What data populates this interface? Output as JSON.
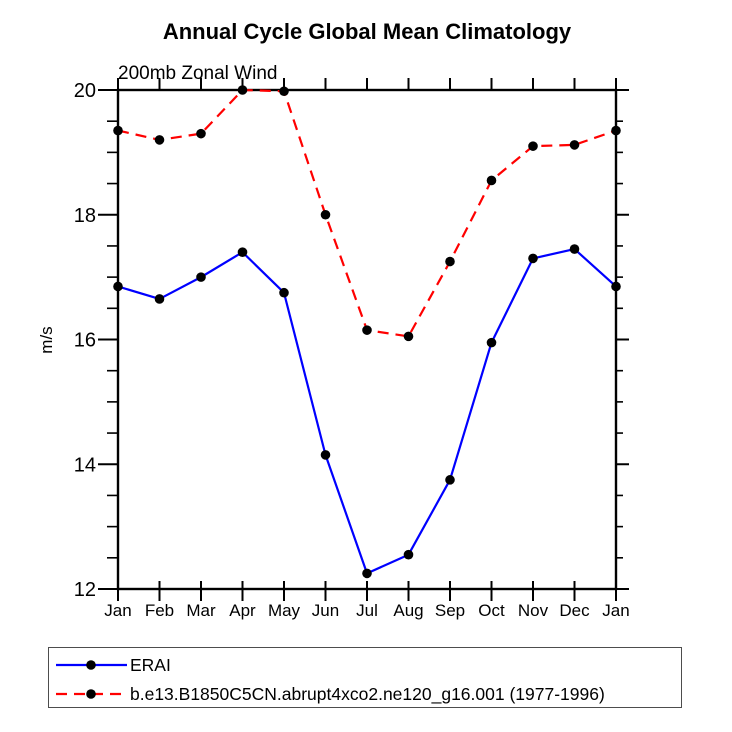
{
  "page": {
    "background": "#ffffff"
  },
  "chart_data": {
    "type": "line",
    "title": "Annual Cycle Global Mean Climatology",
    "subtitle": "200mb Zonal Wind",
    "ylabel": "m/s",
    "xlabel": "",
    "categories": [
      "Jan",
      "Feb",
      "Mar",
      "Apr",
      "May",
      "Jun",
      "Jul",
      "Aug",
      "Sep",
      "Oct",
      "Nov",
      "Dec",
      "Jan"
    ],
    "series": [
      {
        "name": "ERAI",
        "color": "#0000ff",
        "line_style": "solid",
        "marker": "filled-circle",
        "marker_color": "#000000",
        "values": [
          16.85,
          16.65,
          17.0,
          17.4,
          16.75,
          14.15,
          12.25,
          12.55,
          13.75,
          15.95,
          17.3,
          17.45,
          16.85
        ]
      },
      {
        "name": "b.e13.B1850C5CN.abrupt4xco2.ne120_g16.001 (1977-1996)",
        "color": "#ff0000",
        "line_style": "dashed",
        "marker": "filled-circle",
        "marker_color": "#000000",
        "values": [
          19.35,
          19.2,
          19.3,
          20.0,
          19.98,
          18.0,
          16.15,
          16.05,
          17.25,
          18.55,
          19.1,
          19.12,
          19.35
        ]
      }
    ],
    "ylim": [
      12,
      20
    ],
    "yticks": [
      12,
      14,
      16,
      18,
      20
    ],
    "y_minor_interval": 0.5,
    "grid": "off",
    "axis_color": "#000000",
    "legend_position": "bottom-left-box"
  }
}
